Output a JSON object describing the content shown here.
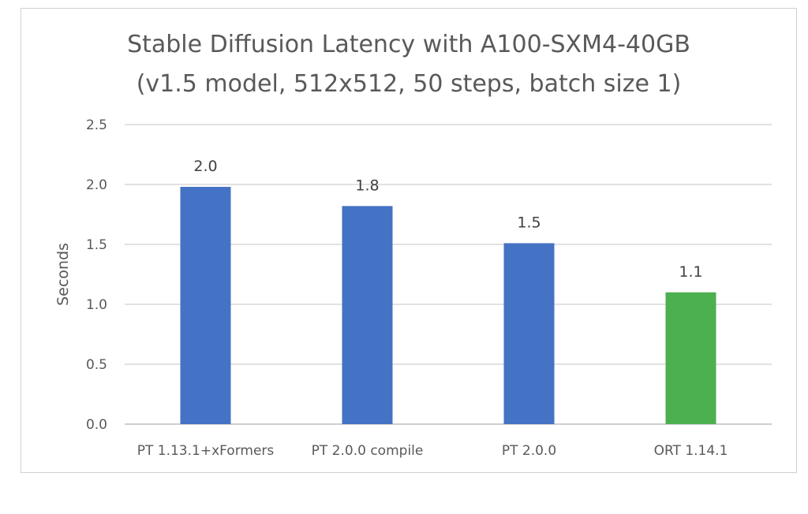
{
  "chart_data": {
    "type": "bar",
    "title": "Stable Diffusion Latency with A100-SXM4-40GB",
    "subtitle": "(v1.5 model, 512x512, 50 steps, batch size 1)",
    "ylabel": "Seconds",
    "xlabel": "",
    "ylim": [
      0,
      2.5
    ],
    "yticks": [
      0.0,
      0.5,
      1.0,
      1.5,
      2.0,
      2.5
    ],
    "ytick_labels": [
      "0.0",
      "0.5",
      "1.0",
      "1.5",
      "2.0",
      "2.5"
    ],
    "grid": true,
    "categories": [
      "PT 1.13.1+xFormers",
      "PT 2.0.0 compile",
      "PT 2.0.0",
      "ORT 1.14.1"
    ],
    "values": [
      1.98,
      1.82,
      1.51,
      1.1
    ],
    "data_labels": [
      "2.0",
      "1.8",
      "1.5",
      "1.1"
    ],
    "colors": [
      "#4472c4",
      "#4472c4",
      "#4472c4",
      "#4caf50"
    ]
  }
}
